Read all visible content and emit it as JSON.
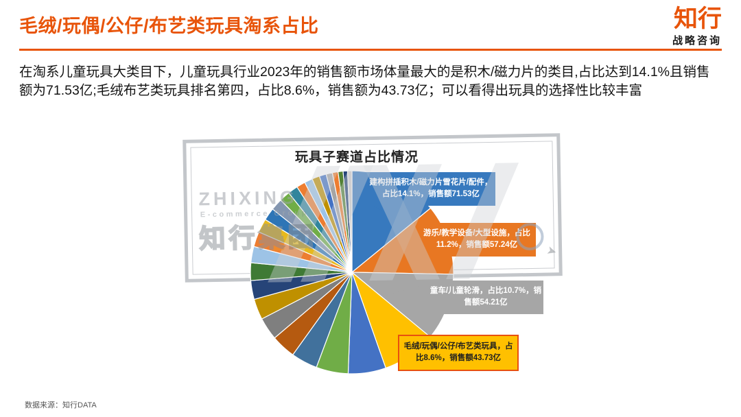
{
  "header": {
    "title": "毛绒/玩偶/公仔/布艺类玩具淘系占比",
    "title_color": "#E8540A",
    "logo_main": "知行",
    "logo_sub": "战略咨询"
  },
  "intro": {
    "text": "在淘系儿童玩具大类目下，儿童玩具行业2023年的销售额市场体量最大的是积木/磁力片的类目,占比达到14.1%且销售额为71.53亿;毛绒布艺类玩具排名第四，占比8.6%，销售额为43.73亿；可以看得出玩具的选择性比较丰富",
    "text_color": "#141414"
  },
  "chart_data": {
    "type": "pie",
    "title": "玩具子赛道占比情况",
    "value_unit": "亿元",
    "start_angle_deg": 0,
    "direction": "clockwise",
    "legend": "none",
    "labeled_slices": [
      {
        "name": "建构拼插积木/磁力片雪花片/配件",
        "pct": 14.1,
        "sales_yi": 71.53,
        "color": "#3779BE",
        "callout": {
          "bg": "#3779BE",
          "text_color": "#ffffff",
          "lines": [
            "建构拼插积木/磁力片雪花片/配件，",
            "占比14.1%，销售额71.53亿"
          ]
        }
      },
      {
        "name": "游乐/教学设备/大型设施",
        "pct": 11.2,
        "sales_yi": 57.24,
        "color": "#E87722",
        "callout": {
          "bg": "#E87722",
          "text_color": "#ffffff",
          "lines": [
            "游乐/教学设备/大型设施，占比",
            "11.2%，销售额57.24亿"
          ]
        }
      },
      {
        "name": "童车/儿童轮滑",
        "pct": 10.7,
        "sales_yi": 54.21,
        "color": "#A6A6A6",
        "callout": {
          "bg": "#A6A6A6",
          "text_color": "#ffffff",
          "lines": [
            "童车/儿童轮滑，占比10.7%，销",
            "售额54.21亿"
          ]
        }
      },
      {
        "name": "毛绒/玩偶/公仔/布艺类玩具",
        "pct": 8.6,
        "sales_yi": 43.73,
        "color": "#FFC000",
        "callout": {
          "bg": "#FFC000",
          "text_color": "#1f1f1f",
          "border": "#E8500F",
          "lines": [
            "毛绒/玩偶/公仔/布艺类玩具，占",
            "比8.6%，销售额43.73亿"
          ]
        }
      }
    ],
    "other_slices": {
      "note": "unlabeled minor toy sub-categories; percentages estimated from arc sizes",
      "pct": [
        6.0,
        5.1,
        4.2,
        3.9,
        3.6,
        3.3,
        3.0,
        2.8,
        2.6,
        2.4,
        2.2,
        2.0,
        1.9,
        1.7,
        1.6,
        1.4,
        1.3,
        1.2,
        1.1,
        1.0,
        0.9,
        0.8,
        0.7,
        0.7
      ],
      "colors": [
        "#4472C4",
        "#70AD47",
        "#41719C",
        "#B55A10",
        "#7F7F7F",
        "#BF9000",
        "#264478",
        "#3F7A35",
        "#9DC3E6",
        "#ED7D31",
        "#E6B91E",
        "#2E75B6",
        "#8496B0",
        "#70AD47",
        "#31859C",
        "#ED7D31",
        "#9DC3E6",
        "#BF9000",
        "#4472C4",
        "#A5A5A5",
        "#ED7D31",
        "#548235",
        "#264478",
        "#D0CECE"
      ]
    }
  },
  "watermark": {
    "brand_en": "ZHIXING",
    "brand_sub_en": "E-commerce Group",
    "brand_cn": "知行集团",
    "registered_mark": "®"
  },
  "footer": {
    "source": "数据来源：知行DATA"
  }
}
